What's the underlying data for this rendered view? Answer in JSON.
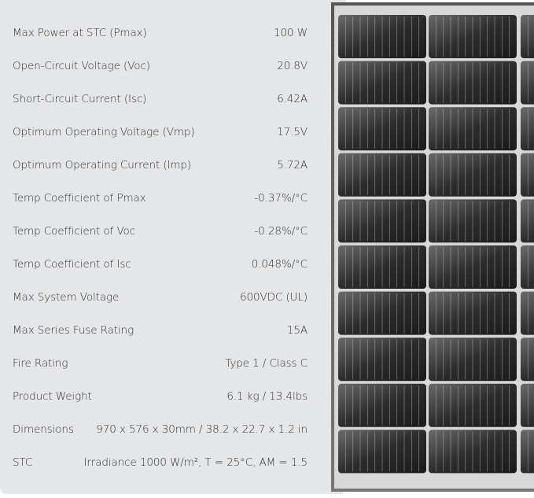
{
  "specs": [
    {
      "label": "Max Power at STC (Pmax)",
      "value": "100 W"
    },
    {
      "label": "Open-Circuit Voltage (Voc)",
      "value": "20.8V"
    },
    {
      "label": "Short-Circuit Current (Isc)",
      "value": "6.42A"
    },
    {
      "label": "Optimum Operating Voltage (Vmp)",
      "value": "17.5V"
    },
    {
      "label": "Optimum Operating Current (Imp)",
      "value": "5.72A"
    },
    {
      "label": "Temp Coefficient of Pmax",
      "value": "-0.37%/°C"
    },
    {
      "label": "Temp Coefficient of Voc",
      "value": "-0.28%/°C"
    },
    {
      "label": "Temp Coefficient of Isc",
      "value": "0.048%/°C"
    },
    {
      "label": "Max System Voltage",
      "value": "600VDC (UL)"
    },
    {
      "label": "Max Series Fuse Rating",
      "value": "15A"
    },
    {
      "label": "Fire Rating",
      "value": "Type 1 / Class C"
    },
    {
      "label": "Product Weight",
      "value": "6.1 kg / 13.4lbs"
    },
    {
      "label": "Dimensions",
      "value": "970 x 576 x 30mm / 38.2 x 22.7 x 1.2 in"
    },
    {
      "label": "STC",
      "value": "Irradiance 1000 W/m², T = 25°C, AM = 1.5"
    }
  ],
  "image": {
    "subject": "solar-panel",
    "frame_color": "#8a8a8a",
    "cell_color": "#2a2a2a"
  }
}
